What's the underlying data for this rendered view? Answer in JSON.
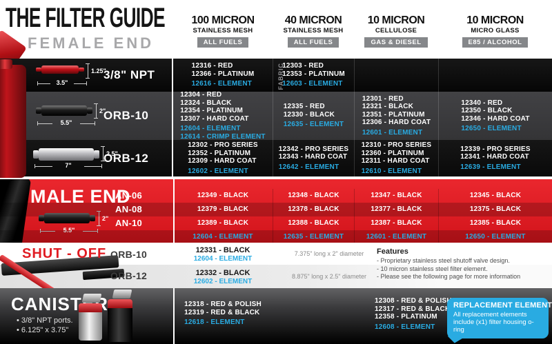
{
  "colors": {
    "accent_blue": "#29ABE2",
    "brand_red": "#E01B22",
    "badge_gray": "#85878A"
  },
  "header": {
    "title": "THE FILTER GUIDE",
    "subtitle": "FEMALE END",
    "columns": [
      {
        "micron": "100 MICRON",
        "media": "STAINLESS MESH",
        "badge": "ALL FUELS"
      },
      {
        "micron": "40 MICRON",
        "media": "STAINLESS MESH",
        "badge": "ALL FUELS"
      },
      {
        "micron": "10 MICRON",
        "media": "CELLULOSE",
        "badge": "GAS & DIESEL"
      },
      {
        "micron": "10 MICRON",
        "media": "MICRO GLASS",
        "badge": "E85 / ALCOHOL"
      }
    ]
  },
  "female": {
    "rows": [
      {
        "label": "3/8\" NPT",
        "height": "1.25\"",
        "length": "3.5\"",
        "cells": [
          {
            "parts": [
              "12316 - RED",
              "12366 - PLATINUM"
            ],
            "elements": [
              "12616 - ELEMENT"
            ]
          },
          {
            "note": "FABRIC",
            "parts": [
              "12303 - RED",
              "12353 - PLATINUM"
            ],
            "elements": [
              "12603 - ELEMENT"
            ]
          },
          {
            "parts": [],
            "elements": []
          },
          {
            "parts": [],
            "elements": []
          }
        ]
      },
      {
        "label": "ORB-10",
        "height": "2\"",
        "length": "5.5\"",
        "cells": [
          {
            "parts": [
              "12304 - RED",
              "12324 - BLACK",
              "12354 - PLATINUM",
              "12307 - HARD COAT"
            ],
            "elements": [
              "12604 - ELEMENT",
              "12614 - CRIMP ELEMENT"
            ]
          },
          {
            "parts": [
              "12335 - RED",
              "12330 - BLACK"
            ],
            "elements": [
              "12635 - ELEMENT"
            ]
          },
          {
            "parts": [
              "12301 - RED",
              "12321 - BLACK",
              "12351 - PLATINUM",
              "12306 - HARD COAT"
            ],
            "elements": [
              "12601 - ELEMENT"
            ]
          },
          {
            "parts": [
              "12340 - RED",
              "12350 - BLACK",
              "12346 - HARD COAT"
            ],
            "elements": [
              "12650 - ELEMENT"
            ]
          }
        ]
      },
      {
        "label": "ORB-12",
        "height": "2.5\"",
        "length": "7\"",
        "cells": [
          {
            "parts": [
              "12302 - PRO SERIES",
              "12352 - PLATINUM",
              "12309 - HARD COAT"
            ],
            "elements": [
              "12602 - ELEMENT"
            ]
          },
          {
            "parts": [
              "12342 - PRO SERIES",
              "12343 - HARD COAT"
            ],
            "elements": [
              "12642 - ELEMENT"
            ]
          },
          {
            "parts": [
              "12310 - PRO SERIES",
              "12360 - PLATINUM",
              "12311 - HARD COAT"
            ],
            "elements": [
              "12610 - ELEMENT"
            ]
          },
          {
            "parts": [
              "12339 - PRO SERIES",
              "12341 - HARD COAT"
            ],
            "elements": [
              "12639 - ELEMENT"
            ]
          }
        ]
      }
    ]
  },
  "male_end": {
    "title": "MALE END",
    "height": "2\"",
    "length": "5.5\"",
    "rows": [
      {
        "label": "AN-06",
        "cells": [
          "12349 - BLACK",
          "12348 - BLACK",
          "12347 - BLACK",
          "12345 - BLACK"
        ]
      },
      {
        "label": "AN-08",
        "cells": [
          "12379 - BLACK",
          "12378 - BLACK",
          "12377 - BLACK",
          "12375 - BLACK"
        ]
      },
      {
        "label": "AN-10",
        "cells": [
          "12389 - BLACK",
          "12388 - BLACK",
          "12387 - BLACK",
          "12385 - BLACK"
        ]
      }
    ],
    "element_row": [
      "12604 - ELEMENT",
      "12635 - ELEMENT",
      "12601 - ELEMENT",
      "12650 - ELEMENT"
    ]
  },
  "shut_off": {
    "title": "SHUT - OFF",
    "rows": [
      {
        "label": "ORB-10",
        "part": "12331 - BLACK",
        "element": "12604 - ELEMENT",
        "dims": "7.375\" long x 2\" diameter"
      },
      {
        "label": "ORB-12",
        "part": "12332 - BLACK",
        "element": "12602 - ELEMENT",
        "dims": "8.875\" long x 2.5\" diameter"
      }
    ],
    "features_title": "Features",
    "features": [
      "- Proprietary stainless steel shutoff valve design.",
      "- 10 micron stainless steel filter element.",
      "- Please see the following page for more information"
    ]
  },
  "canister": {
    "title": "CANISTER",
    "bullets": [
      "• 3/8\" NPT ports.",
      "• 6.125\" x 3.75\""
    ],
    "col1": {
      "parts": [
        "12318 - RED & POLISH",
        "12319 - RED & BLACK"
      ],
      "elements": [
        "12618 - ELEMENT"
      ]
    },
    "col3": {
      "parts": [
        "12308 - RED & POLISH",
        "12317 - RED & BLACK",
        "12358 - PLATINUM"
      ],
      "elements": [
        "12608 - ELEMENT"
      ]
    },
    "replacement": {
      "title": "REPLACEMENT ELEMENTS",
      "body": "All replacement elements include (x1) filter housing o-ring"
    }
  }
}
